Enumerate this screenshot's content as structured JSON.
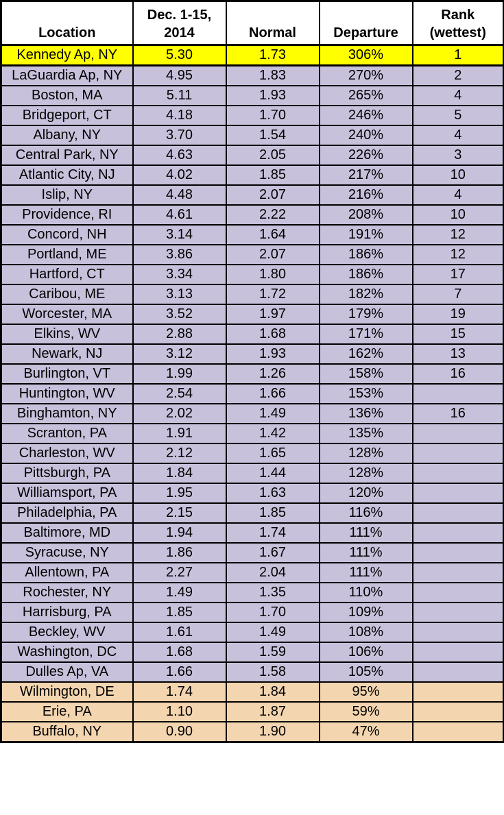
{
  "colors": {
    "yellow": "#FFFF00",
    "lavender": "#C7C1DB",
    "tan": "#F3D5AF",
    "border": "#000000",
    "header_background": "#FFFFFF"
  },
  "chart_data": {
    "type": "table",
    "columns": [
      "Location",
      "Dec. 1-15,\n2014",
      "Normal",
      "Departure",
      "Rank\n(wettest)"
    ],
    "rows": [
      {
        "location": "Kennedy Ap, NY",
        "dec_1_15_2014": "5.30",
        "normal": "1.73",
        "departure": "306%",
        "rank": "1",
        "highlight": "yellow"
      },
      {
        "location": "LaGuardia Ap, NY",
        "dec_1_15_2014": "4.95",
        "normal": "1.83",
        "departure": "270%",
        "rank": "2",
        "highlight": "lavender"
      },
      {
        "location": "Boston, MA",
        "dec_1_15_2014": "5.11",
        "normal": "1.93",
        "departure": "265%",
        "rank": "4",
        "highlight": "lavender"
      },
      {
        "location": "Bridgeport, CT",
        "dec_1_15_2014": "4.18",
        "normal": "1.70",
        "departure": "246%",
        "rank": "5",
        "highlight": "lavender"
      },
      {
        "location": "Albany, NY",
        "dec_1_15_2014": "3.70",
        "normal": "1.54",
        "departure": "240%",
        "rank": "4",
        "highlight": "lavender"
      },
      {
        "location": "Central Park, NY",
        "dec_1_15_2014": "4.63",
        "normal": "2.05",
        "departure": "226%",
        "rank": "3",
        "highlight": "lavender"
      },
      {
        "location": "Atlantic City, NJ",
        "dec_1_15_2014": "4.02",
        "normal": "1.85",
        "departure": "217%",
        "rank": "10",
        "highlight": "lavender"
      },
      {
        "location": "Islip, NY",
        "dec_1_15_2014": "4.48",
        "normal": "2.07",
        "departure": "216%",
        "rank": "4",
        "highlight": "lavender"
      },
      {
        "location": "Providence, RI",
        "dec_1_15_2014": "4.61",
        "normal": "2.22",
        "departure": "208%",
        "rank": "10",
        "highlight": "lavender"
      },
      {
        "location": "Concord, NH",
        "dec_1_15_2014": "3.14",
        "normal": "1.64",
        "departure": "191%",
        "rank": "12",
        "highlight": "lavender"
      },
      {
        "location": "Portland, ME",
        "dec_1_15_2014": "3.86",
        "normal": "2.07",
        "departure": "186%",
        "rank": "12",
        "highlight": "lavender"
      },
      {
        "location": "Hartford, CT",
        "dec_1_15_2014": "3.34",
        "normal": "1.80",
        "departure": "186%",
        "rank": "17",
        "highlight": "lavender"
      },
      {
        "location": "Caribou, ME",
        "dec_1_15_2014": "3.13",
        "normal": "1.72",
        "departure": "182%",
        "rank": "7",
        "highlight": "lavender"
      },
      {
        "location": "Worcester, MA",
        "dec_1_15_2014": "3.52",
        "normal": "1.97",
        "departure": "179%",
        "rank": "19",
        "highlight": "lavender"
      },
      {
        "location": "Elkins, WV",
        "dec_1_15_2014": "2.88",
        "normal": "1.68",
        "departure": "171%",
        "rank": "15",
        "highlight": "lavender"
      },
      {
        "location": "Newark, NJ",
        "dec_1_15_2014": "3.12",
        "normal": "1.93",
        "departure": "162%",
        "rank": "13",
        "highlight": "lavender"
      },
      {
        "location": "Burlington, VT",
        "dec_1_15_2014": "1.99",
        "normal": "1.26",
        "departure": "158%",
        "rank": "16",
        "highlight": "lavender"
      },
      {
        "location": "Huntington, WV",
        "dec_1_15_2014": "2.54",
        "normal": "1.66",
        "departure": "153%",
        "rank": "",
        "highlight": "lavender"
      },
      {
        "location": "Binghamton, NY",
        "dec_1_15_2014": "2.02",
        "normal": "1.49",
        "departure": "136%",
        "rank": "16",
        "highlight": "lavender"
      },
      {
        "location": "Scranton, PA",
        "dec_1_15_2014": "1.91",
        "normal": "1.42",
        "departure": "135%",
        "rank": "",
        "highlight": "lavender"
      },
      {
        "location": "Charleston, WV",
        "dec_1_15_2014": "2.12",
        "normal": "1.65",
        "departure": "128%",
        "rank": "",
        "highlight": "lavender"
      },
      {
        "location": "Pittsburgh, PA",
        "dec_1_15_2014": "1.84",
        "normal": "1.44",
        "departure": "128%",
        "rank": "",
        "highlight": "lavender"
      },
      {
        "location": "Williamsport, PA",
        "dec_1_15_2014": "1.95",
        "normal": "1.63",
        "departure": "120%",
        "rank": "",
        "highlight": "lavender"
      },
      {
        "location": "Philadelphia, PA",
        "dec_1_15_2014": "2.15",
        "normal": "1.85",
        "departure": "116%",
        "rank": "",
        "highlight": "lavender"
      },
      {
        "location": "Baltimore, MD",
        "dec_1_15_2014": "1.94",
        "normal": "1.74",
        "departure": "111%",
        "rank": "",
        "highlight": "lavender"
      },
      {
        "location": "Syracuse, NY",
        "dec_1_15_2014": "1.86",
        "normal": "1.67",
        "departure": "111%",
        "rank": "",
        "highlight": "lavender"
      },
      {
        "location": "Allentown, PA",
        "dec_1_15_2014": "2.27",
        "normal": "2.04",
        "departure": "111%",
        "rank": "",
        "highlight": "lavender"
      },
      {
        "location": "Rochester, NY",
        "dec_1_15_2014": "1.49",
        "normal": "1.35",
        "departure": "110%",
        "rank": "",
        "highlight": "lavender"
      },
      {
        "location": "Harrisburg, PA",
        "dec_1_15_2014": "1.85",
        "normal": "1.70",
        "departure": "109%",
        "rank": "",
        "highlight": "lavender"
      },
      {
        "location": "Beckley, WV",
        "dec_1_15_2014": "1.61",
        "normal": "1.49",
        "departure": "108%",
        "rank": "",
        "highlight": "lavender"
      },
      {
        "location": "Washington, DC",
        "dec_1_15_2014": "1.68",
        "normal": "1.59",
        "departure": "106%",
        "rank": "",
        "highlight": "lavender"
      },
      {
        "location": "Dulles Ap, VA",
        "dec_1_15_2014": "1.66",
        "normal": "1.58",
        "departure": "105%",
        "rank": "",
        "highlight": "lavender"
      },
      {
        "location": "Wilmington, DE",
        "dec_1_15_2014": "1.74",
        "normal": "1.84",
        "departure": "95%",
        "rank": "",
        "highlight": "tan"
      },
      {
        "location": "Erie, PA",
        "dec_1_15_2014": "1.10",
        "normal": "1.87",
        "departure": "59%",
        "rank": "",
        "highlight": "tan"
      },
      {
        "location": "Buffalo, NY",
        "dec_1_15_2014": "0.90",
        "normal": "1.90",
        "departure": "47%",
        "rank": "",
        "highlight": "tan"
      }
    ]
  }
}
